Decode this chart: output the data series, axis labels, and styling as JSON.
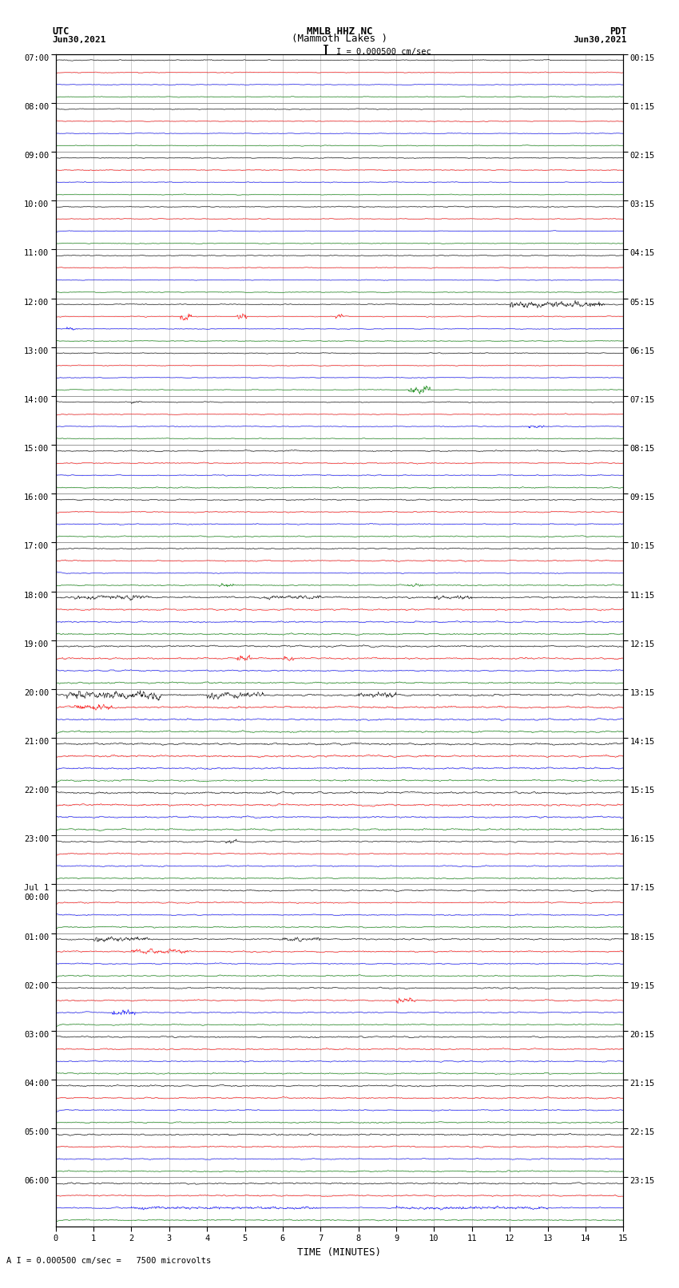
{
  "title_line1": "MMLB HHZ NC",
  "title_line2": "(Mammoth Lakes )",
  "title_scale": "I = 0.000500 cm/sec",
  "left_label_line1": "UTC",
  "left_label_line2": "Jun30,2021",
  "right_label_line1": "PDT",
  "right_label_line2": "Jun30,2021",
  "xlabel": "TIME (MINUTES)",
  "bottom_label": "A I = 0.000500 cm/sec =   7500 microvolts",
  "utc_hour_times": [
    "07:00",
    "08:00",
    "09:00",
    "10:00",
    "11:00",
    "12:00",
    "13:00",
    "14:00",
    "15:00",
    "16:00",
    "17:00",
    "18:00",
    "19:00",
    "20:00",
    "21:00",
    "22:00",
    "23:00",
    "Jul 1\n00:00",
    "01:00",
    "02:00",
    "03:00",
    "04:00",
    "05:00",
    "06:00"
  ],
  "pdt_hour_times": [
    "00:15",
    "01:15",
    "02:15",
    "03:15",
    "04:15",
    "05:15",
    "06:15",
    "07:15",
    "08:15",
    "09:15",
    "10:15",
    "11:15",
    "12:15",
    "13:15",
    "14:15",
    "15:15",
    "16:15",
    "17:15",
    "18:15",
    "19:15",
    "20:15",
    "21:15",
    "22:15",
    "23:15"
  ],
  "n_hours": 24,
  "traces_per_hour": 4,
  "n_minutes": 15,
  "colors_cycle": [
    "black",
    "red",
    "blue",
    "green"
  ],
  "bg_color": "white",
  "grid_color": "#aaaaaa",
  "noise_base": 0.018,
  "seed": 12345
}
